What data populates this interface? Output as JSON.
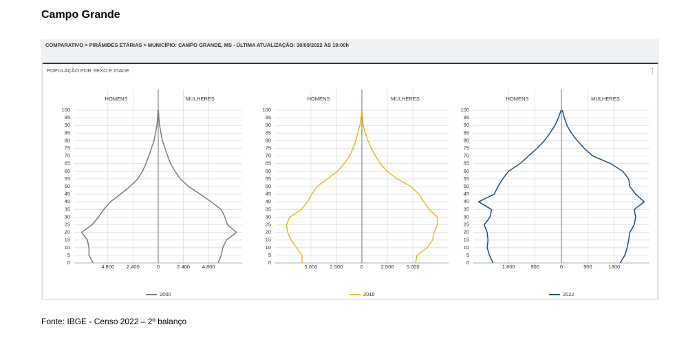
{
  "header": {
    "title": "Campo Grande"
  },
  "breadcrumb": "COMPARATIVO > PIRÂMIDES ETÁRIAS > MUNICÍPIO: CAMPO GRANDE, MS - ÚLTIMA ATUALIZAÇÃO: 30/09/2022 ÀS 19:00h",
  "panel_title": "POPULAÇÃO POR SEXO E IDADE",
  "chart_data": [
    {
      "type": "pyramid",
      "left_label": "HOMENS",
      "right_label": "MULHERES",
      "ages": [
        0,
        5,
        10,
        15,
        20,
        25,
        30,
        35,
        40,
        45,
        50,
        55,
        60,
        65,
        70,
        75,
        80,
        85,
        90,
        95,
        100
      ],
      "series": [
        {
          "name": "2000",
          "color": "#7a7a7a",
          "men": [
            -6200,
            -6600,
            -6600,
            -6750,
            -7300,
            -6300,
            -5700,
            -5200,
            -4550,
            -3600,
            -2700,
            -1950,
            -1500,
            -1170,
            -900,
            -650,
            -400,
            -260,
            -130,
            -60,
            -20
          ],
          "women": [
            5700,
            6000,
            6150,
            6500,
            7450,
            6600,
            6350,
            6000,
            5050,
            4000,
            2900,
            2100,
            1600,
            1170,
            900,
            650,
            400,
            260,
            130,
            60,
            20
          ]
        }
      ],
      "xlim": [
        -8000,
        8000
      ],
      "xticks": [
        {
          "value": -4800,
          "label": "4.800"
        },
        {
          "value": -2400,
          "label": "2.400"
        },
        0,
        {
          "value": 2400,
          "label": "2.400"
        },
        {
          "value": 4800,
          "label": "4.800"
        }
      ],
      "ylim": [
        0,
        100
      ],
      "yticks": [
        0,
        5,
        10,
        15,
        20,
        25,
        30,
        35,
        40,
        45,
        50,
        55,
        60,
        65,
        70,
        75,
        80,
        85,
        90,
        95,
        100
      ]
    },
    {
      "type": "pyramid",
      "left_label": "HOMENS",
      "right_label": "MULHERES",
      "ages": [
        0,
        5,
        10,
        15,
        20,
        25,
        30,
        35,
        40,
        45,
        50,
        55,
        60,
        65,
        70,
        75,
        80,
        85,
        90,
        95,
        100
      ],
      "series": [
        {
          "name": "2010",
          "color": "#e8b828",
          "men": [
            -5870,
            -5870,
            -6400,
            -6930,
            -7270,
            -7400,
            -7070,
            -5930,
            -5330,
            -4930,
            -4400,
            -3400,
            -2400,
            -1730,
            -1200,
            -870,
            -600,
            -400,
            -200,
            -70,
            -20
          ],
          "women": [
            5270,
            5400,
            6400,
            6930,
            7070,
            7400,
            7400,
            6600,
            6070,
            5600,
            4800,
            3470,
            2470,
            1800,
            1330,
            930,
            600,
            330,
            130,
            70,
            20
          ]
        }
      ],
      "xlim": [
        -8500,
        8500
      ],
      "xticks": [
        {
          "value": -5000,
          "label": "5.000"
        },
        {
          "value": -2500,
          "label": "2.500"
        },
        0,
        {
          "value": 2500,
          "label": "2.500"
        },
        {
          "value": 5000,
          "label": "5.000"
        }
      ],
      "ylim": [
        0,
        100
      ],
      "yticks": [
        0,
        5,
        10,
        15,
        20,
        25,
        30,
        35,
        40,
        45,
        50,
        55,
        60,
        65,
        70,
        75,
        80,
        85,
        90,
        95,
        100
      ]
    },
    {
      "type": "pyramid",
      "left_label": "HOMENS",
      "right_label": "MULHERES",
      "ages": [
        0,
        5,
        10,
        15,
        20,
        25,
        30,
        35,
        40,
        45,
        50,
        55,
        60,
        65,
        70,
        75,
        80,
        85,
        90,
        95,
        100
      ],
      "series": [
        {
          "name": "2022",
          "color": "#1f4e79",
          "men": [
            -2330,
            -2450,
            -2530,
            -2500,
            -2530,
            -2630,
            -2430,
            -2380,
            -2820,
            -2290,
            -2160,
            -2000,
            -1800,
            -1410,
            -1120,
            -830,
            -580,
            -390,
            -220,
            -100,
            -10
          ],
          "women": [
            2000,
            2160,
            2240,
            2290,
            2330,
            2480,
            2530,
            2480,
            2820,
            2530,
            2330,
            2290,
            2090,
            1680,
            1070,
            780,
            540,
            340,
            190,
            100,
            30
          ]
        }
      ],
      "xlim": [
        -3000,
        3000
      ],
      "xticks": [
        {
          "value": -1800,
          "label": "1.800"
        },
        {
          "value": -900,
          "label": "900"
        },
        0,
        900,
        1800
      ],
      "ylim": [
        0,
        100
      ],
      "yticks": [
        0,
        5,
        10,
        15,
        20,
        25,
        30,
        35,
        40,
        45,
        50,
        55,
        60,
        65,
        70,
        75,
        80,
        85,
        90,
        95,
        100
      ]
    }
  ],
  "footer": "Fonte: IBGE - Censo 2022 – 2º balanço"
}
